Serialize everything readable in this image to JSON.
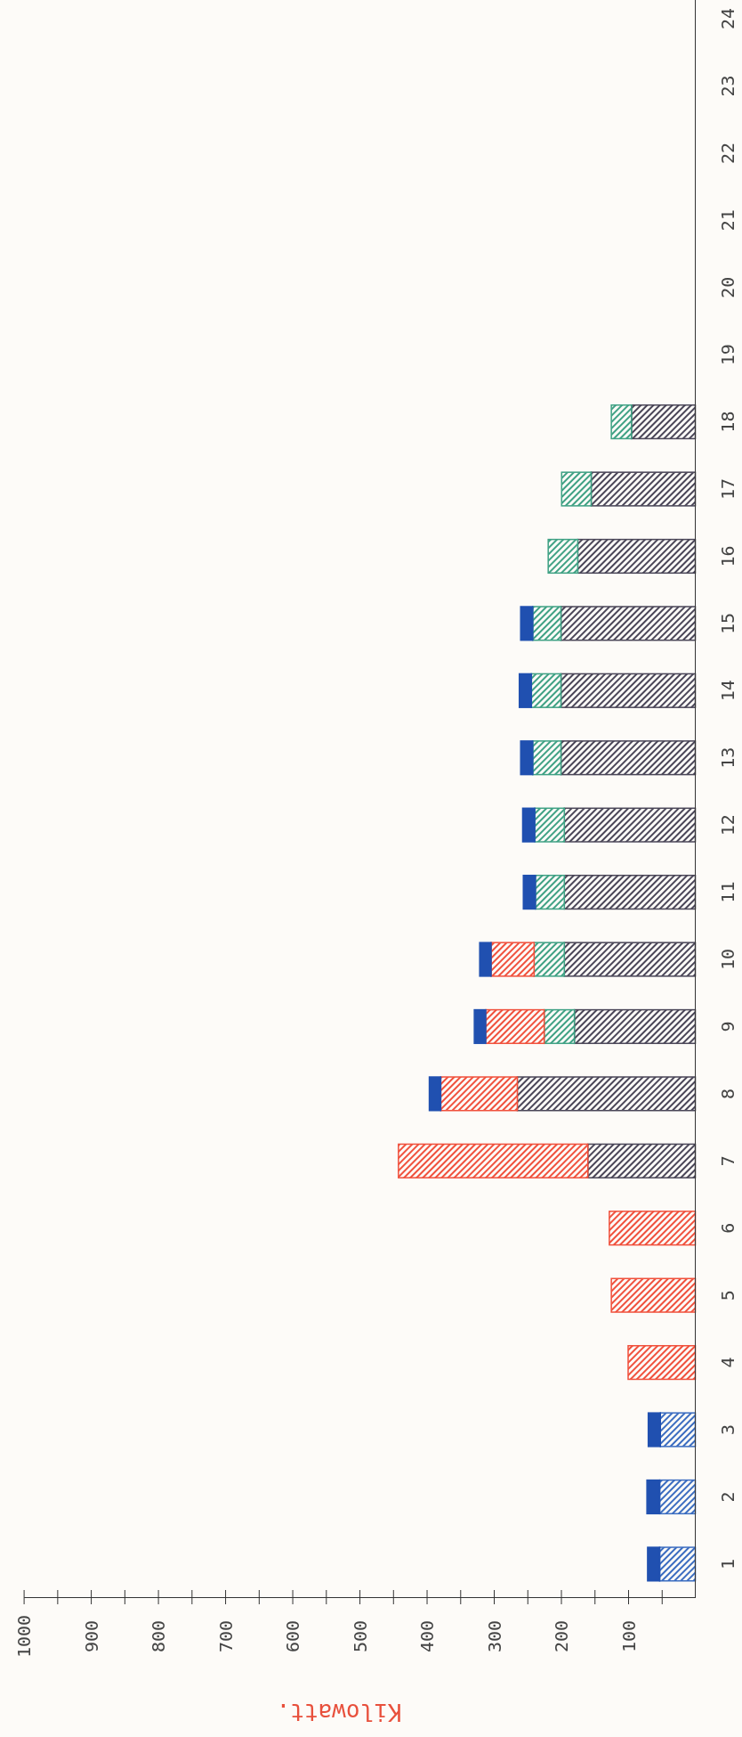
{
  "chart_data": {
    "type": "bar",
    "stacked": true,
    "orientation": "horizontal",
    "xlabel": "Kilowatt.",
    "categories": [
      "24",
      "23",
      "22",
      "21",
      "20",
      "19",
      "18",
      "17",
      "16",
      "15",
      "14",
      "13",
      "12",
      "11",
      "10",
      "9",
      "8",
      "7",
      "6",
      "5",
      "4",
      "3",
      "2",
      "1"
    ],
    "series": [
      {
        "color": "#4a4658",
        "values": [
          null,
          null,
          null,
          null,
          null,
          null,
          95,
          155,
          175,
          200,
          200,
          200,
          195,
          195,
          195,
          180,
          265,
          160,
          null,
          null,
          null,
          null,
          null,
          null
        ]
      },
      {
        "color": "#3a6cc0",
        "values": [
          null,
          null,
          null,
          null,
          null,
          null,
          null,
          null,
          null,
          null,
          null,
          null,
          null,
          null,
          null,
          null,
          null,
          null,
          null,
          null,
          null,
          52,
          53,
          53
        ]
      },
      {
        "color": "#3fa184",
        "values": [
          null,
          null,
          null,
          null,
          null,
          null,
          30,
          44,
          44,
          42,
          44,
          42,
          44,
          43,
          45,
          45,
          null,
          null,
          null,
          null,
          null,
          null,
          null,
          null
        ]
      },
      {
        "color": "#f0503c",
        "values": [
          null,
          null,
          null,
          null,
          null,
          null,
          null,
          null,
          null,
          null,
          null,
          null,
          null,
          null,
          64,
          87,
          114,
          282,
          128,
          125,
          100,
          null,
          null,
          null
        ]
      },
      {
        "color": "#2050b0",
        "values": [
          null,
          null,
          null,
          null,
          null,
          null,
          null,
          null,
          null,
          18,
          18,
          18,
          18,
          18,
          17,
          17,
          17,
          null,
          null,
          null,
          null,
          18,
          19,
          18
        ]
      }
    ],
    "xlim": [
      1000,
      0
    ],
    "xticks": [
      1000,
      {
        "value": 950,
        "label": null
      },
      900,
      {
        "value": 850,
        "label": null
      },
      800,
      {
        "value": 750,
        "label": null
      },
      700,
      {
        "value": 650,
        "label": null
      },
      600,
      {
        "value": 550,
        "label": null
      },
      500,
      {
        "value": 450,
        "label": null
      },
      400,
      {
        "value": 350,
        "label": null
      },
      300,
      {
        "value": 250,
        "label": null
      },
      200,
      {
        "value": 150,
        "label": null
      },
      100,
      {
        "value": 50,
        "label": null
      }
    ]
  }
}
